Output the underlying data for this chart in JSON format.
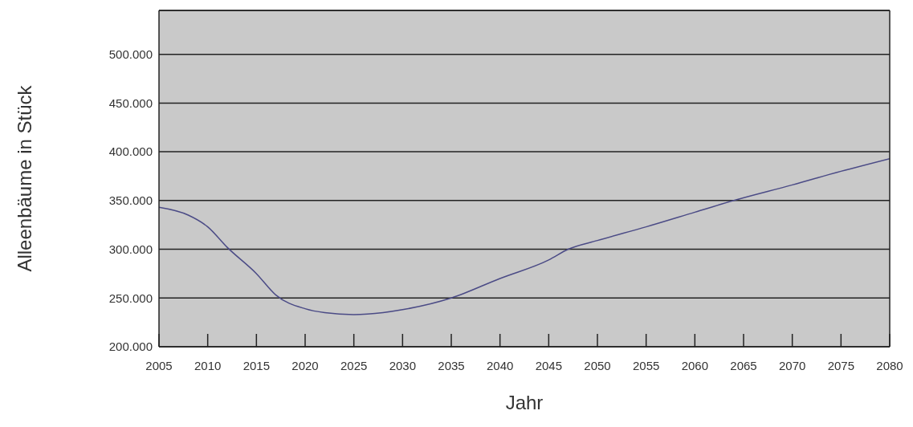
{
  "chart_data": {
    "type": "line",
    "xlabel": "Jahr",
    "ylabel": "Alleenbäume in Stück",
    "x": [
      2005,
      2008,
      2010,
      2012,
      2015,
      2017,
      2020,
      2022,
      2025,
      2028,
      2030,
      2035,
      2040,
      2045,
      2047,
      2050,
      2055,
      2060,
      2064,
      2070,
      2075,
      2080
    ],
    "series": [
      {
        "color": "#4b4b86",
        "values": [
          343000,
          335000,
          323000,
          302000,
          275000,
          253000,
          239000,
          235000,
          233000,
          235000,
          238000,
          250000,
          270000,
          289000,
          300000,
          309000,
          323000,
          338000,
          350000,
          366000,
          380000,
          393000
        ]
      }
    ],
    "xlim": [
      2005,
      2080
    ],
    "xticks": [
      2005,
      2010,
      2015,
      2020,
      2025,
      2030,
      2035,
      2040,
      2045,
      2050,
      2055,
      2060,
      2065,
      2070,
      2075,
      2080
    ],
    "ylim": [
      200000,
      545000
    ],
    "yticks": [
      {
        "value": 200000,
        "label": "200.000"
      },
      {
        "value": 250000,
        "label": "250.000"
      },
      {
        "value": 300000,
        "label": "300.000"
      },
      {
        "value": 350000,
        "label": "350.000"
      },
      {
        "value": 400000,
        "label": "400.000"
      },
      {
        "value": 450000,
        "label": "450.000"
      },
      {
        "value": 500000,
        "label": "500.000"
      }
    ],
    "grid": "y",
    "legend": false,
    "marker": "none",
    "line_style": "solid"
  }
}
